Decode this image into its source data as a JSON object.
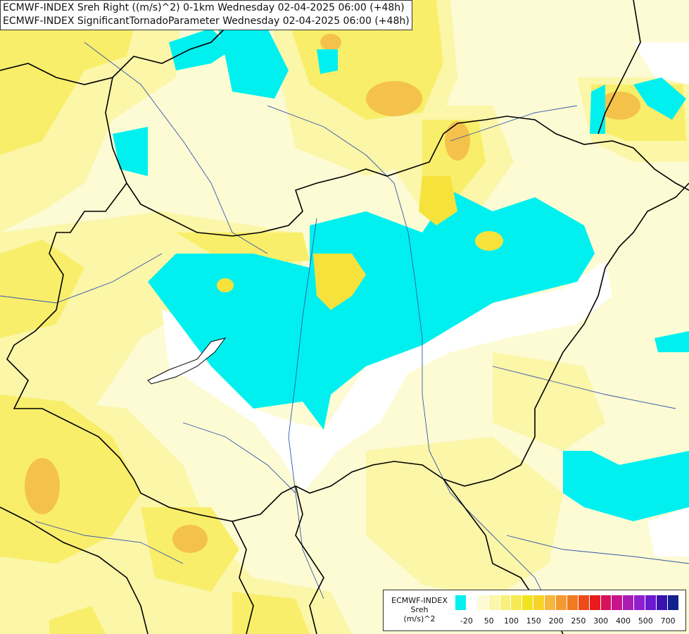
{
  "titles": {
    "line1": "ECMWF-INDEX Sreh Right ((m/s)^2) 0-1km Wednesday 02-04-2025 06:00 (+48h)",
    "line2": "ECMWF-INDEX SignificantTornadoParameter Wednesday 02-04-2025 06:00 (+48h)"
  },
  "legend": {
    "name_line1": "ECMWF-INDEX",
    "name_line2": "Sreh",
    "name_line3": "(m/s)^2",
    "colors": [
      "#00f0f0",
      "#ffffff",
      "#fdfbd3",
      "#fbf6a8",
      "#f8f07c",
      "#f5ea50",
      "#f2e31f",
      "#f8d32a",
      "#f6b73c",
      "#f49a31",
      "#f27a1f",
      "#ee4a1a",
      "#ea1a1a",
      "#d8125a",
      "#c8148c",
      "#a81cb4",
      "#8f1ecf",
      "#6a1ad0",
      "#3a12b0",
      "#121f8f"
    ],
    "ticks": [
      {
        "label": "-20",
        "index": 1
      },
      {
        "label": "50",
        "index": 3
      },
      {
        "label": "100",
        "index": 5
      },
      {
        "label": "150",
        "index": 7
      },
      {
        "label": "200",
        "index": 9
      },
      {
        "label": "250",
        "index": 11
      },
      {
        "label": "300",
        "index": 13
      },
      {
        "label": "400",
        "index": 15
      },
      {
        "label": "500",
        "index": 17
      },
      {
        "label": "700",
        "index": 19
      }
    ]
  },
  "map_colors": {
    "cyan": "#00f0f0",
    "white": "#ffffff",
    "pale": "#fdfbd3",
    "light_yellow": "#fbf6a8",
    "yellow": "#f8ee6a",
    "gold": "#f6e23a",
    "orange": "#f4c24a",
    "border": "#000000",
    "river": "#3355aa"
  }
}
